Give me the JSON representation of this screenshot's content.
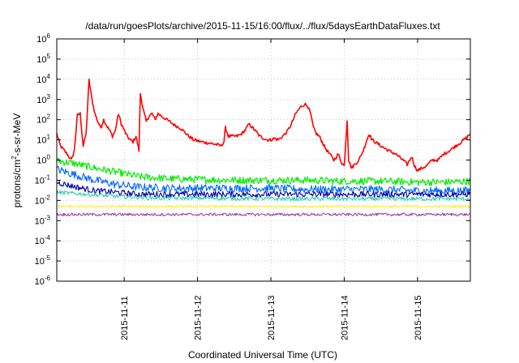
{
  "chart_data": {
    "type": "line",
    "title": "/data/run/goesPlots/archive/2015-11-15/16:00/flux/../flux/5daysEarthDataFluxes.txt",
    "xlabel": "Coordinated Universal Time (UTC)",
    "ylabel": {
      "prefix": "protons/cm",
      "exp": "2",
      "suffix": "-s-sr-MeV"
    },
    "yscale": "log",
    "ylim": [
      1e-06,
      1000000.0
    ],
    "xlim": [
      10.08,
      15.72
    ],
    "x_unit": "day of November 2015",
    "grid": true,
    "x_ticks": [
      {
        "x": 11,
        "label": "2015-11-11"
      },
      {
        "x": 12,
        "label": "2015-11-12"
      },
      {
        "x": 13,
        "label": "2015-11-13"
      },
      {
        "x": 14,
        "label": "2015-11-14"
      },
      {
        "x": 15,
        "label": "2015-11-15"
      }
    ],
    "y_ticks": [
      {
        "value": 1000000.0,
        "base": "10",
        "exp": "6"
      },
      {
        "value": 100000.0,
        "base": "10",
        "exp": "5"
      },
      {
        "value": 10000.0,
        "base": "10",
        "exp": "4"
      },
      {
        "value": 1000.0,
        "base": "10",
        "exp": "3"
      },
      {
        "value": 100.0,
        "base": "10",
        "exp": "2"
      },
      {
        "value": 10.0,
        "base": "10",
        "exp": "1"
      },
      {
        "value": 1.0,
        "base": "10",
        "exp": "0"
      },
      {
        "value": 0.1,
        "base": "10",
        "exp": "-1"
      },
      {
        "value": 0.01,
        "base": "10",
        "exp": "-2"
      },
      {
        "value": 0.001,
        "base": "10",
        "exp": "-3"
      },
      {
        "value": 0.0001,
        "base": "10",
        "exp": "-4"
      },
      {
        "value": 1e-05,
        "base": "10",
        "exp": "-5"
      },
      {
        "value": 1e-06,
        "base": "10",
        "exp": "-6"
      }
    ],
    "series": [
      {
        "color": "#ff0000",
        "width": 1.6,
        "noise": 0.08,
        "points": [
          [
            10.08,
            20
          ],
          [
            10.13,
            5
          ],
          [
            10.18,
            3
          ],
          [
            10.22,
            2
          ],
          [
            10.28,
            1
          ],
          [
            10.32,
            3
          ],
          [
            10.36,
            160
          ],
          [
            10.4,
            200
          ],
          [
            10.44,
            5
          ],
          [
            10.48,
            20
          ],
          [
            10.52,
            9000
          ],
          [
            10.56,
            1000
          ],
          [
            10.6,
            200
          ],
          [
            10.64,
            80
          ],
          [
            10.68,
            40
          ],
          [
            10.72,
            100
          ],
          [
            10.76,
            50
          ],
          [
            10.8,
            30
          ],
          [
            10.84,
            15
          ],
          [
            10.88,
            30
          ],
          [
            10.92,
            200
          ],
          [
            10.96,
            60
          ],
          [
            11.0,
            30
          ],
          [
            11.04,
            15
          ],
          [
            11.08,
            10
          ],
          [
            11.12,
            8
          ],
          [
            11.16,
            15
          ],
          [
            11.2,
            3
          ],
          [
            11.22,
            2000
          ],
          [
            11.26,
            300
          ],
          [
            11.3,
            80
          ],
          [
            11.34,
            150
          ],
          [
            11.38,
            200
          ],
          [
            11.42,
            100
          ],
          [
            11.46,
            200
          ],
          [
            11.52,
            140
          ],
          [
            11.58,
            100
          ],
          [
            11.64,
            70
          ],
          [
            11.7,
            50
          ],
          [
            11.76,
            40
          ],
          [
            11.82,
            25
          ],
          [
            11.88,
            15
          ],
          [
            11.95,
            10
          ],
          [
            12.05,
            8
          ],
          [
            12.15,
            7
          ],
          [
            12.25,
            6
          ],
          [
            12.32,
            5
          ],
          [
            12.36,
            8
          ],
          [
            12.38,
            40
          ],
          [
            12.42,
            15
          ],
          [
            12.48,
            15
          ],
          [
            12.54,
            15
          ],
          [
            12.6,
            20
          ],
          [
            12.65,
            30
          ],
          [
            12.7,
            60
          ],
          [
            12.75,
            40
          ],
          [
            12.8,
            25
          ],
          [
            12.85,
            15
          ],
          [
            12.9,
            12
          ],
          [
            12.95,
            10
          ],
          [
            13.0,
            10
          ],
          [
            13.05,
            12
          ],
          [
            13.1,
            10
          ],
          [
            13.16,
            15
          ],
          [
            13.22,
            25
          ],
          [
            13.28,
            60
          ],
          [
            13.34,
            200
          ],
          [
            13.4,
            400
          ],
          [
            13.46,
            600
          ],
          [
            13.5,
            500
          ],
          [
            13.54,
            200
          ],
          [
            13.58,
            40
          ],
          [
            13.62,
            20
          ],
          [
            13.66,
            15
          ],
          [
            13.7,
            8
          ],
          [
            13.74,
            4
          ],
          [
            13.8,
            2
          ],
          [
            13.86,
            1
          ],
          [
            13.92,
            2
          ],
          [
            13.96,
            0.8
          ],
          [
            14.0,
            0.5
          ],
          [
            14.04,
            100
          ],
          [
            14.06,
            1
          ],
          [
            14.1,
            0.4
          ],
          [
            14.14,
            0.6
          ],
          [
            14.2,
            1
          ],
          [
            14.26,
            3
          ],
          [
            14.3,
            8
          ],
          [
            14.34,
            20
          ],
          [
            14.38,
            10
          ],
          [
            14.42,
            8
          ],
          [
            14.5,
            5
          ],
          [
            14.6,
            3
          ],
          [
            14.7,
            2
          ],
          [
            14.8,
            1
          ],
          [
            14.86,
            0.6
          ],
          [
            14.92,
            1.5
          ],
          [
            14.96,
            0.5
          ],
          [
            15.0,
            0.3
          ],
          [
            15.06,
            0.4
          ],
          [
            15.12,
            0.5
          ],
          [
            15.2,
            1
          ],
          [
            15.28,
            1
          ],
          [
            15.36,
            2
          ],
          [
            15.44,
            3
          ],
          [
            15.52,
            5
          ],
          [
            15.6,
            8
          ],
          [
            15.66,
            12
          ],
          [
            15.72,
            20
          ]
        ]
      },
      {
        "color": "#00ee00",
        "width": 1.2,
        "noise": 0.18,
        "points": [
          [
            10.08,
            0.9
          ],
          [
            10.3,
            0.7
          ],
          [
            10.6,
            0.4
          ],
          [
            10.9,
            0.25
          ],
          [
            11.2,
            0.15
          ],
          [
            11.6,
            0.12
          ],
          [
            12.0,
            0.11
          ],
          [
            12.5,
            0.1
          ],
          [
            13.0,
            0.1
          ],
          [
            13.5,
            0.1
          ],
          [
            14.0,
            0.09
          ],
          [
            14.5,
            0.09
          ],
          [
            15.0,
            0.08
          ],
          [
            15.4,
            0.08
          ],
          [
            15.72,
            0.09
          ]
        ]
      },
      {
        "color": "#0066ff",
        "width": 1.1,
        "noise": 0.2,
        "points": [
          [
            10.08,
            0.35
          ],
          [
            10.3,
            0.2
          ],
          [
            10.6,
            0.1
          ],
          [
            10.9,
            0.06
          ],
          [
            11.2,
            0.045
          ],
          [
            11.6,
            0.04
          ],
          [
            12.0,
            0.04
          ],
          [
            12.5,
            0.04
          ],
          [
            13.0,
            0.04
          ],
          [
            13.5,
            0.035
          ],
          [
            14.0,
            0.035
          ],
          [
            14.5,
            0.035
          ],
          [
            15.0,
            0.03
          ],
          [
            15.4,
            0.03
          ],
          [
            15.72,
            0.03
          ]
        ]
      },
      {
        "color": "#0000aa",
        "width": 1.1,
        "noise": 0.15,
        "points": [
          [
            10.08,
            0.08
          ],
          [
            10.3,
            0.05
          ],
          [
            10.6,
            0.03
          ],
          [
            10.9,
            0.025
          ],
          [
            11.2,
            0.02
          ],
          [
            11.6,
            0.02
          ],
          [
            12.0,
            0.02
          ],
          [
            12.5,
            0.02
          ],
          [
            13.0,
            0.02
          ],
          [
            13.5,
            0.02
          ],
          [
            14.0,
            0.02
          ],
          [
            14.5,
            0.02
          ],
          [
            15.0,
            0.02
          ],
          [
            15.4,
            0.02
          ],
          [
            15.72,
            0.02
          ]
        ]
      },
      {
        "color": "#22ccaa",
        "width": 1.0,
        "noise": 0.1,
        "points": [
          [
            10.08,
            0.025
          ],
          [
            10.5,
            0.02
          ],
          [
            11.0,
            0.015
          ],
          [
            11.5,
            0.013
          ],
          [
            12.0,
            0.013
          ],
          [
            13.0,
            0.012
          ],
          [
            14.0,
            0.012
          ],
          [
            15.0,
            0.012
          ],
          [
            15.72,
            0.012
          ]
        ]
      },
      {
        "color": "#ffee00",
        "width": 1.0,
        "noise": 0.05,
        "points": [
          [
            10.08,
            0.005
          ],
          [
            11.0,
            0.005
          ],
          [
            12.0,
            0.005
          ],
          [
            13.0,
            0.005
          ],
          [
            14.0,
            0.005
          ],
          [
            15.0,
            0.005
          ],
          [
            15.72,
            0.005
          ]
        ]
      },
      {
        "color": "#993399",
        "width": 1.0,
        "noise": 0.07,
        "points": [
          [
            10.08,
            0.002
          ],
          [
            11.0,
            0.002
          ],
          [
            12.0,
            0.002
          ],
          [
            13.0,
            0.002
          ],
          [
            14.0,
            0.002
          ],
          [
            15.0,
            0.002
          ],
          [
            15.72,
            0.002
          ]
        ]
      }
    ]
  }
}
